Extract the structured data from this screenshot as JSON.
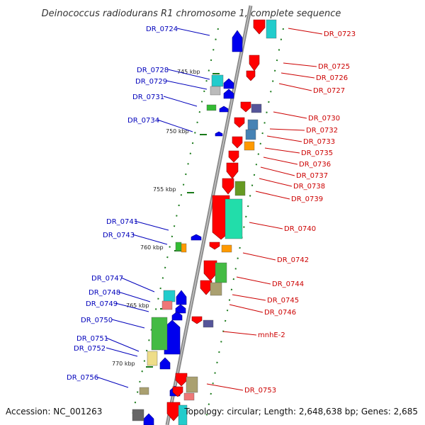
{
  "title": "Deinococcus radiodurans R1 chromosome 1, complete sequence",
  "accession": "Accession: NC_001263",
  "summary": "Topology: circular; Length: 2,648,638 bp; Genes: 2,685",
  "colors": {
    "forward_label": "#cc0000",
    "reverse_label": "#0000bb",
    "forward_gene": "#ff0000",
    "reverse_gene": "#0000ee",
    "backbone": "#888888",
    "dots": "#1a7a1a"
  },
  "tick_labels": [
    "745 kbp",
    "750 kbp",
    "755 kbp",
    "760 kbp",
    "765 kbp",
    "770 kbp"
  ],
  "left_labels": [
    "DR_0724",
    "DR_0728",
    "DR_0729",
    "DR_0731",
    "DR_0734",
    "DR_0741",
    "DR_0743",
    "DR_0747",
    "DR_0748",
    "DR_0749",
    "DR_0750",
    "DR_0751",
    "DR_0752",
    "DR_0756"
  ],
  "right_labels": [
    "DR_0723",
    "DR_0725",
    "DR_0726",
    "DR_0727",
    "DR_0730",
    "DR_0732",
    "DR_0733",
    "DR_0735",
    "DR_0736",
    "DR_0737",
    "DR_0738",
    "DR_0739",
    "DR_0740",
    "DR_0742",
    "DR_0744",
    "DR_0745",
    "DR_0746",
    "mnhE-2",
    "DR_0753"
  ]
}
